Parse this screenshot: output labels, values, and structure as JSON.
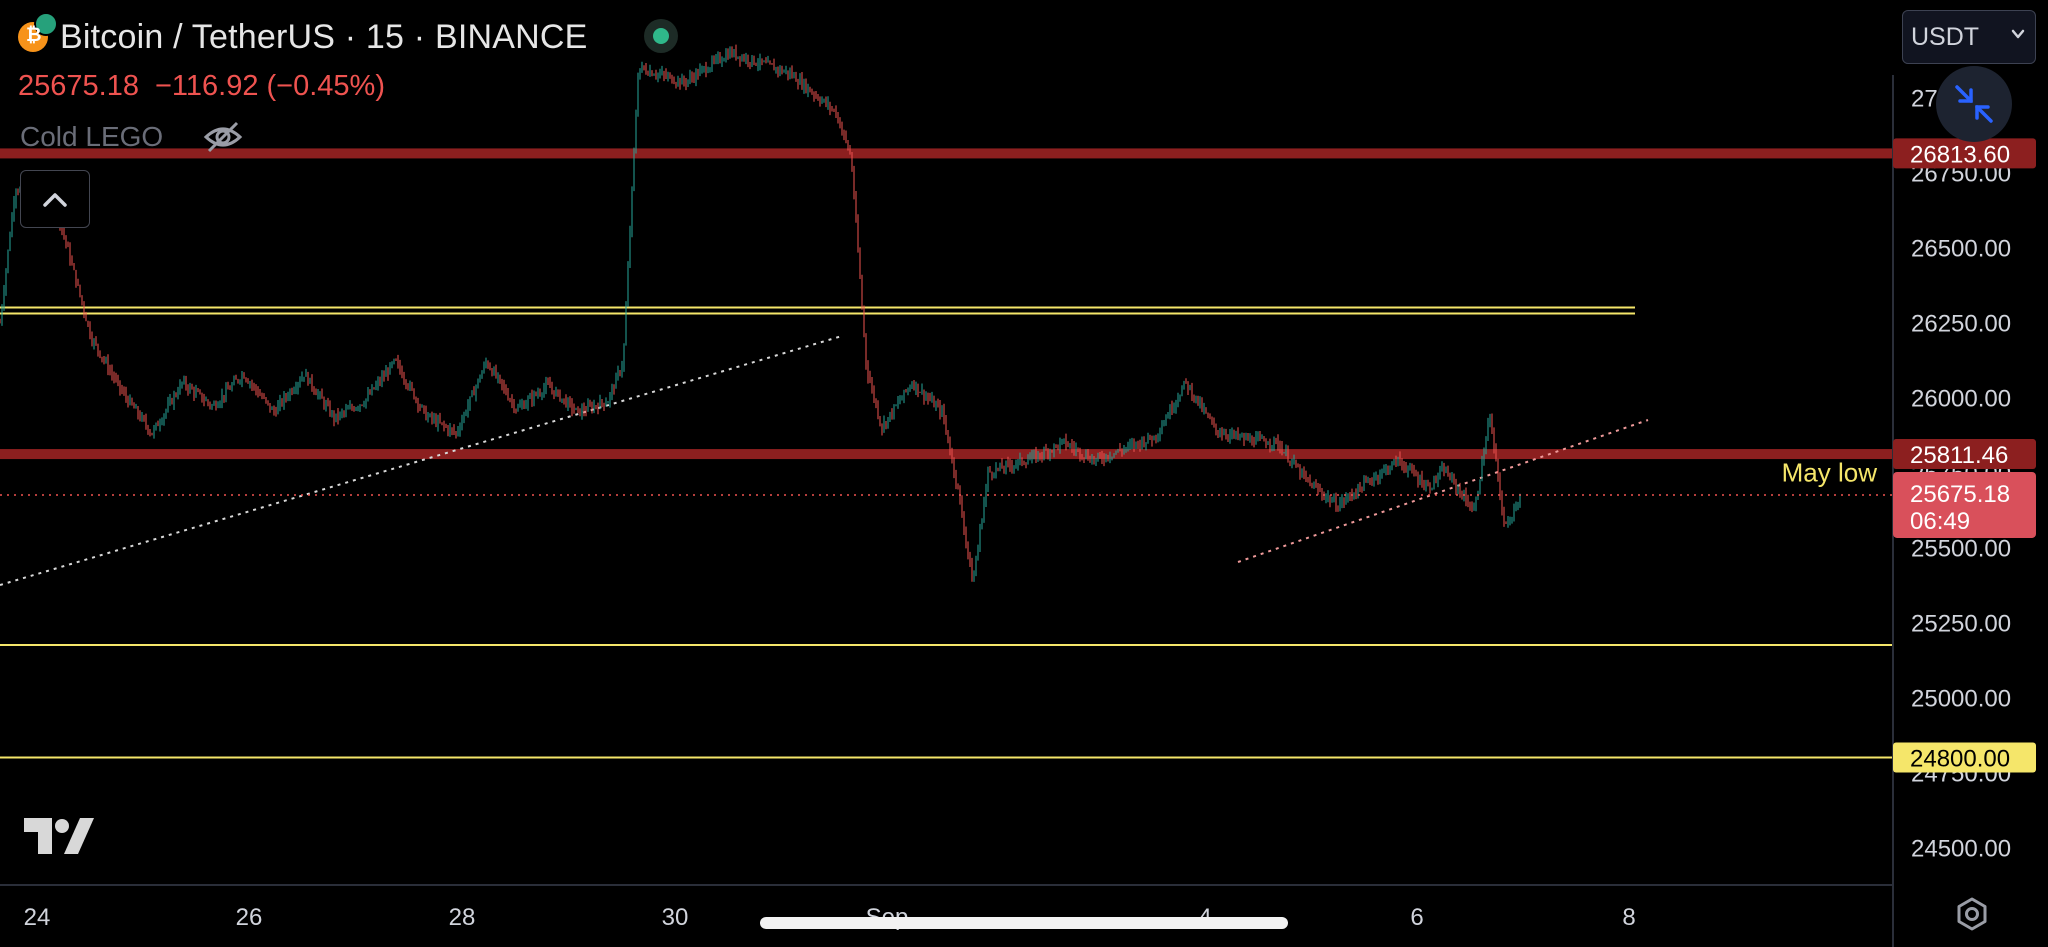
{
  "header": {
    "symbol_title": "Bitcoin / TetherUS · 15 · BINANCE",
    "last_price": "25675.18",
    "change": "−116.92 (−0.45%)",
    "indicator_name": "Cold LEGO",
    "currency": "USDT"
  },
  "colors": {
    "background": "#000000",
    "up_candle": "#26a69a",
    "down_candle": "#ef5350",
    "resistance_line": "#8c1f1f",
    "support_line": "#f5e66a",
    "price_line": "#ef5350",
    "axis_text": "#d1d4dc"
  },
  "icons": [
    "bitcoin-icon",
    "live-status-icon",
    "eye-off-icon",
    "chevron-up-icon",
    "tradingview-logo-icon",
    "collapse-arrows-icon",
    "settings-icon",
    "chevron-down-icon"
  ],
  "chart_data": {
    "type": "candlestick",
    "symbol": "BTCUSDT",
    "exchange": "BINANCE",
    "interval": "15",
    "x_ticks": [
      "24",
      "26",
      "28",
      "30",
      "Sep",
      "4",
      "6",
      "8"
    ],
    "y_ticks": [
      "27000.00",
      "26750.00",
      "26500.00",
      "26250.00",
      "26000.00",
      "25750.00",
      "25500.00",
      "25250.00",
      "25000.00",
      "24750.00",
      "24500.00"
    ],
    "ylim": [
      24375,
      27075
    ],
    "price_path": [
      {
        "x": 0,
        "y": 26250
      },
      {
        "x": 1,
        "y": 26700
      },
      {
        "x": 3,
        "y": 26650
      },
      {
        "x": 4,
        "y": 26580
      },
      {
        "x": 6,
        "y": 26200
      },
      {
        "x": 8,
        "y": 26020
      },
      {
        "x": 10,
        "y": 25880
      },
      {
        "x": 12,
        "y": 26050
      },
      {
        "x": 14,
        "y": 25970
      },
      {
        "x": 16,
        "y": 26080
      },
      {
        "x": 18,
        "y": 25950
      },
      {
        "x": 20,
        "y": 26080
      },
      {
        "x": 22,
        "y": 25930
      },
      {
        "x": 24,
        "y": 25990
      },
      {
        "x": 26,
        "y": 26120
      },
      {
        "x": 28,
        "y": 25940
      },
      {
        "x": 30,
        "y": 25880
      },
      {
        "x": 32,
        "y": 26120
      },
      {
        "x": 34,
        "y": 25960
      },
      {
        "x": 36,
        "y": 26040
      },
      {
        "x": 38,
        "y": 25950
      },
      {
        "x": 40,
        "y": 25990
      },
      {
        "x": 41,
        "y": 26120
      },
      {
        "x": 42,
        "y": 27100
      },
      {
        "x": 45,
        "y": 27050
      },
      {
        "x": 48,
        "y": 27150
      },
      {
        "x": 52,
        "y": 27080
      },
      {
        "x": 55,
        "y": 26950
      },
      {
        "x": 56,
        "y": 26800
      },
      {
        "x": 57,
        "y": 26100
      },
      {
        "x": 58,
        "y": 25900
      },
      {
        "x": 60,
        "y": 26050
      },
      {
        "x": 62,
        "y": 25950
      },
      {
        "x": 63,
        "y": 25700
      },
      {
        "x": 64,
        "y": 25380
      },
      {
        "x": 65,
        "y": 25750
      },
      {
        "x": 68,
        "y": 25800
      },
      {
        "x": 70,
        "y": 25850
      },
      {
        "x": 72,
        "y": 25790
      },
      {
        "x": 74,
        "y": 25830
      },
      {
        "x": 76,
        "y": 25870
      },
      {
        "x": 78,
        "y": 26050
      },
      {
        "x": 80,
        "y": 25890
      },
      {
        "x": 82,
        "y": 25860
      },
      {
        "x": 84,
        "y": 25850
      },
      {
        "x": 86,
        "y": 25720
      },
      {
        "x": 88,
        "y": 25640
      },
      {
        "x": 90,
        "y": 25720
      },
      {
        "x": 92,
        "y": 25790
      },
      {
        "x": 94,
        "y": 25700
      },
      {
        "x": 95,
        "y": 25760
      },
      {
        "x": 97,
        "y": 25620
      },
      {
        "x": 98,
        "y": 25940
      },
      {
        "x": 99,
        "y": 25560
      },
      {
        "x": 100,
        "y": 25675
      }
    ],
    "horizontal_lines": [
      {
        "price": 26813.6,
        "label": "26813.60",
        "style": "resistance"
      },
      {
        "price": 26290,
        "label": "",
        "style": "support"
      },
      {
        "price": 25811.46,
        "label": "25811.46",
        "style": "resistance"
      },
      {
        "price": 25175,
        "label": "",
        "style": "support"
      },
      {
        "price": 24800,
        "label": "24800.00",
        "style": "support"
      }
    ],
    "current_price": {
      "price": 25675.18,
      "label": "25675.18",
      "countdown": "06:49"
    },
    "annotations": [
      {
        "text": "May low",
        "price": 25750
      }
    ]
  }
}
